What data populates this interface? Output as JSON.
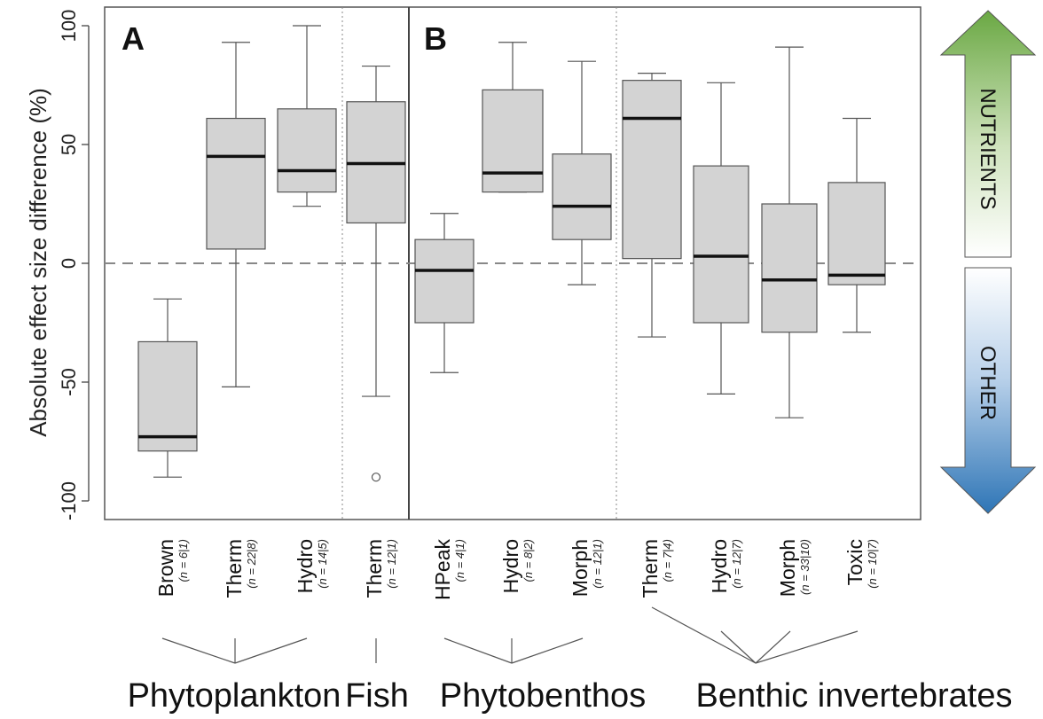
{
  "chart_data": {
    "type": "box",
    "ylabel": "Absolute effect size difference (%)",
    "ylim": [
      -110,
      105
    ],
    "yticks": [
      100,
      50,
      0,
      -50,
      -100
    ],
    "reference_line": 0,
    "panels": [
      {
        "label": "A"
      },
      {
        "label": "B"
      }
    ],
    "boxes": [
      {
        "panel": "A",
        "group": "Phytoplankton",
        "label": "Brown",
        "n": "(n = 6|1)",
        "min": -90,
        "q1": -79,
        "median": -73,
        "q3": -33,
        "max": -15,
        "outliers": []
      },
      {
        "panel": "A",
        "group": "Phytoplankton",
        "label": "Therm",
        "n": "(n = 22|8)",
        "min": -52,
        "q1": 6,
        "median": 45,
        "q3": 61,
        "max": 93,
        "outliers": []
      },
      {
        "panel": "A",
        "group": "Phytoplankton",
        "label": "Hydro",
        "n": "(n = 14|5)",
        "min": 24,
        "q1": 30,
        "median": 39,
        "q3": 65,
        "max": 100,
        "outliers": []
      },
      {
        "panel": "A",
        "group": "Fish",
        "label": "Therm",
        "n": "(n = 12|1)",
        "min": -56,
        "q1": 17,
        "median": 42,
        "q3": 68,
        "max": 83,
        "outliers": [
          -90
        ]
      },
      {
        "panel": "B",
        "group": "Phytobenthos",
        "label": "HPeak",
        "n": "(n = 4|1)",
        "min": -46,
        "q1": -25,
        "median": -3,
        "q3": 10,
        "max": 21,
        "outliers": []
      },
      {
        "panel": "B",
        "group": "Phytobenthos",
        "label": "Hydro",
        "n": "(n = 8|2)",
        "min": 30,
        "q1": 30,
        "median": 38,
        "q3": 73,
        "max": 93,
        "outliers": []
      },
      {
        "panel": "B",
        "group": "Phytobenthos",
        "label": "Morph",
        "n": "(n = 12|1)",
        "min": -9,
        "q1": 10,
        "median": 24,
        "q3": 46,
        "max": 85,
        "outliers": []
      },
      {
        "panel": "B",
        "group": "Benthic invertebrates",
        "label": "Therm",
        "n": "(n = 7|4)",
        "min": -31,
        "q1": 2,
        "median": 61,
        "q3": 77,
        "max": 80,
        "outliers": []
      },
      {
        "panel": "B",
        "group": "Benthic invertebrates",
        "label": "Hydro",
        "n": "(n = 12|7)",
        "min": -55,
        "q1": -25,
        "median": 3,
        "q3": 41,
        "max": 76,
        "outliers": []
      },
      {
        "panel": "B",
        "group": "Benthic invertebrates",
        "label": "Morph",
        "n": "(n = 33|10)",
        "min": -65,
        "q1": -29,
        "median": -7,
        "q3": 25,
        "max": 91,
        "outliers": []
      },
      {
        "panel": "B",
        "group": "Benthic invertebrates",
        "label": "Toxic",
        "n": "(n = 10|7)",
        "min": -29,
        "q1": -9,
        "median": -5,
        "q3": 34,
        "max": 61,
        "outliers": []
      }
    ],
    "groups": [
      "Phytoplankton",
      "Fish",
      "Phytobenthos",
      "Benthic invertebrates"
    ],
    "arrows": {
      "up": {
        "label": "NUTRIENTS",
        "color": "#6aa843"
      },
      "down": {
        "label": "OTHER",
        "color": "#2e75b6"
      }
    },
    "box_fill": "#d3d3d3"
  }
}
